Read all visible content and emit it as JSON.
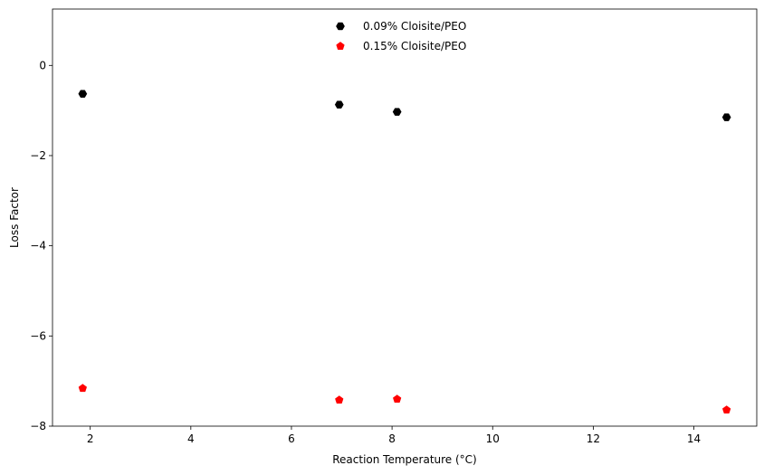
{
  "chart_data": {
    "type": "scatter",
    "title": "",
    "xlabel": "Reaction Temperature (°C)",
    "ylabel": "Loss Factor",
    "xlim": [
      1.25,
      15.25
    ],
    "ylim": [
      -8,
      1.25
    ],
    "xticks": [
      2,
      4,
      6,
      8,
      10,
      12,
      14
    ],
    "yticks": [
      0,
      -2,
      -4,
      -6,
      -8
    ],
    "xtick_labels": [
      "2",
      "4",
      "6",
      "8",
      "10",
      "12",
      "14"
    ],
    "ytick_labels": [
      "0",
      "−2",
      "−4",
      "−6",
      "−8"
    ],
    "grid": false,
    "legend_position": "top-center",
    "series": [
      {
        "name": "0.09% Cloisite/PEO",
        "color": "#000000",
        "marker": "hexagon",
        "x": [
          1.85,
          6.95,
          8.1,
          14.65
        ],
        "y": [
          -0.63,
          -0.87,
          -1.03,
          -1.15
        ]
      },
      {
        "name": "0.15% Cloisite/PEO",
        "color": "#ff0000",
        "marker": "pentagon",
        "x": [
          1.85,
          6.95,
          8.1,
          14.65
        ],
        "y": [
          -7.16,
          -7.42,
          -7.4,
          -7.64
        ]
      }
    ]
  }
}
